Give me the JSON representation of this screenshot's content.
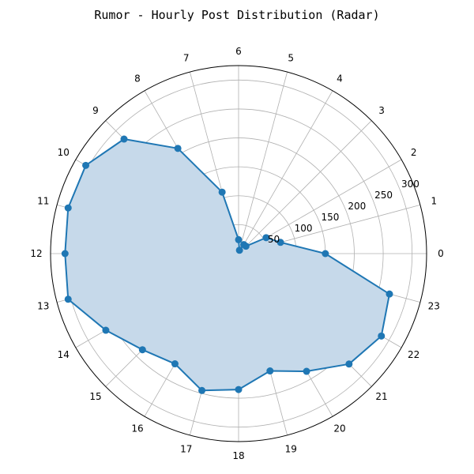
{
  "chart_data": {
    "type": "radar",
    "title": "Rumor - Hourly Post Distribution (Radar)",
    "categories": [
      "0",
      "1",
      "2",
      "3",
      "4",
      "5",
      "6",
      "7",
      "8",
      "9",
      "10",
      "11",
      "12",
      "13",
      "14",
      "15",
      "16",
      "17",
      "18",
      "19",
      "20",
      "21",
      "22",
      "23"
    ],
    "values": [
      150,
      75,
      55,
      18,
      18,
      6,
      24,
      110,
      210,
      280,
      305,
      305,
      300,
      305,
      265,
      235,
      220,
      245,
      235,
      210,
      235,
      270,
      285,
      270
    ],
    "radial_ticks": [
      50,
      100,
      150,
      200,
      250,
      300
    ],
    "rlim": [
      0,
      325
    ],
    "grid": true,
    "colors": {
      "line": "#1f77b4",
      "fill": "#c6d9ea",
      "grid": "#b0b0b0",
      "frame": "#000000"
    }
  }
}
